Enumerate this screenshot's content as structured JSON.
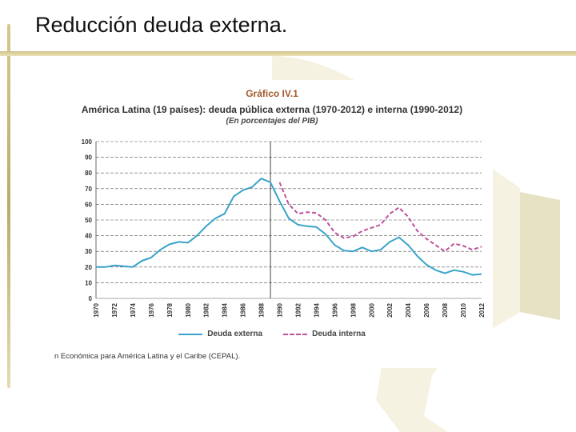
{
  "slide": {
    "title": "Reducción deuda externa."
  },
  "chart": {
    "tag": "Gráfico IV.1",
    "title": "América Latina (19 países): deuda pública externa (1970-2012) e interna (1990-2012)",
    "subtitle": "(En porcentajes del PIB)",
    "source": "n Económica para América Latina y el Caribe (CEPAL)."
  },
  "chart_data": {
    "type": "line",
    "title": "América Latina (19 países): deuda pública externa (1970-2012) e interna (1990-2012)",
    "subtitle": "(En porcentajes del PIB)",
    "xlabel": "",
    "ylabel": "",
    "xlim": [
      1970,
      2012
    ],
    "ylim": [
      0,
      100
    ],
    "yticks": [
      0,
      10,
      20,
      30,
      40,
      50,
      60,
      70,
      80,
      90,
      100
    ],
    "xticks": [
      1970,
      1972,
      1974,
      1976,
      1978,
      1980,
      1982,
      1984,
      1986,
      1988,
      1990,
      1992,
      1994,
      1996,
      1998,
      2000,
      2002,
      2004,
      2006,
      2008,
      2010,
      2012
    ],
    "grid": "horizontal dashed",
    "divider_year": 1989,
    "legend_position": "bottom",
    "colors": {
      "externa": "#3aa3c9",
      "interna": "#c04f9a"
    },
    "series": [
      {
        "name": "Deuda externa",
        "style": "solid",
        "points": [
          [
            1970,
            20
          ],
          [
            1971,
            20
          ],
          [
            1972,
            21
          ],
          [
            1973,
            20.5
          ],
          [
            1974,
            20
          ],
          [
            1975,
            24
          ],
          [
            1976,
            26
          ],
          [
            1977,
            31
          ],
          [
            1978,
            34.5
          ],
          [
            1979,
            36
          ],
          [
            1980,
            35.5
          ],
          [
            1981,
            40
          ],
          [
            1982,
            46
          ],
          [
            1983,
            51
          ],
          [
            1984,
            54
          ],
          [
            1985,
            65
          ],
          [
            1986,
            69
          ],
          [
            1987,
            71
          ],
          [
            1988,
            76.5
          ],
          [
            1989,
            74
          ],
          [
            1990,
            62
          ],
          [
            1991,
            51
          ],
          [
            1992,
            47
          ],
          [
            1993,
            46
          ],
          [
            1994,
            45.5
          ],
          [
            1995,
            41
          ],
          [
            1996,
            34
          ],
          [
            1997,
            30.5
          ],
          [
            1998,
            30
          ],
          [
            1999,
            32.5
          ],
          [
            2000,
            30
          ],
          [
            2001,
            31
          ],
          [
            2002,
            36
          ],
          [
            2003,
            39
          ],
          [
            2004,
            34
          ],
          [
            2005,
            27
          ],
          [
            2006,
            21.5
          ],
          [
            2007,
            18
          ],
          [
            2008,
            16
          ],
          [
            2009,
            18
          ],
          [
            2010,
            17
          ],
          [
            2011,
            15
          ],
          [
            2012,
            15.5
          ]
        ]
      },
      {
        "name": "Deuda interna",
        "style": "dashed",
        "points": [
          [
            1990,
            74
          ],
          [
            1991,
            60
          ],
          [
            1992,
            54
          ],
          [
            1993,
            55
          ],
          [
            1994,
            54.5
          ],
          [
            1995,
            50
          ],
          [
            1996,
            42
          ],
          [
            1997,
            38.5
          ],
          [
            1998,
            39.5
          ],
          [
            1999,
            43
          ],
          [
            2000,
            45
          ],
          [
            2001,
            47
          ],
          [
            2002,
            54
          ],
          [
            2003,
            58
          ],
          [
            2004,
            52
          ],
          [
            2005,
            43
          ],
          [
            2006,
            38
          ],
          [
            2007,
            34
          ],
          [
            2008,
            30
          ],
          [
            2009,
            35
          ],
          [
            2010,
            33.5
          ],
          [
            2011,
            31
          ],
          [
            2012,
            33
          ]
        ]
      }
    ]
  }
}
